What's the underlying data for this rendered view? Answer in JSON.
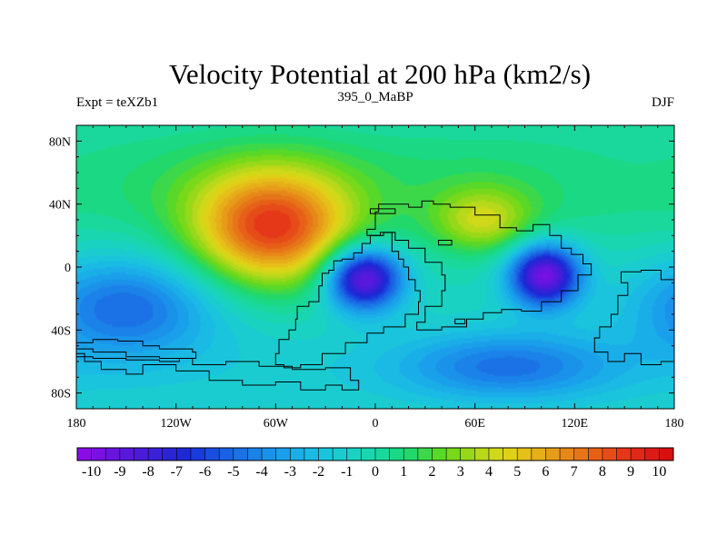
{
  "chart_data": {
    "type": "heatmap",
    "title": "Velocity Potential at 200 hPa (km2/s)",
    "left_string": "Expt = teXZb1",
    "center_string": "395_0_MaBP",
    "right_string": "DJF",
    "x_range": [
      -180,
      180
    ],
    "y_range": [
      -90,
      90
    ],
    "x_ticks": [
      {
        "value": -180,
        "label": "180"
      },
      {
        "value": -120,
        "label": "120W"
      },
      {
        "value": -60,
        "label": "60W"
      },
      {
        "value": 0,
        "label": "0"
      },
      {
        "value": 60,
        "label": "60E"
      },
      {
        "value": 120,
        "label": "120E"
      },
      {
        "value": 180,
        "label": "180"
      }
    ],
    "y_ticks": [
      {
        "value": 80,
        "label": "80N"
      },
      {
        "value": 40,
        "label": "40N"
      },
      {
        "value": 0,
        "label": "0"
      },
      {
        "value": -40,
        "label": "40S"
      },
      {
        "value": -80,
        "label": "80S"
      }
    ],
    "features": [
      {
        "name": "max-south-america",
        "lon": -62,
        "lat": 24,
        "value": 8.6
      },
      {
        "name": "max-central-asia",
        "lon": 65,
        "lat": 29,
        "value": 3.8
      },
      {
        "name": "min-africa",
        "lon": -7,
        "lat": -7,
        "value": -9.5
      },
      {
        "name": "min-indonesia",
        "lon": 102,
        "lat": -5,
        "value": -9.2
      },
      {
        "name": "min-south-pacific",
        "lon": -150,
        "lat": -25,
        "value": -4.3
      },
      {
        "name": "weak-low-arctic",
        "lon": 160,
        "lat": 60,
        "value": -0.5
      },
      {
        "name": "weak-low-southern",
        "lon": 80,
        "lat": -63,
        "value": -3.5
      }
    ],
    "colorbar": {
      "labels": [
        "-10",
        "-9",
        "-8",
        "-7",
        "-6",
        "-5",
        "-4",
        "-3",
        "-2",
        "-1",
        "0",
        "1",
        "2",
        "3",
        "4",
        "5",
        "6",
        "7",
        "8",
        "9",
        "10"
      ],
      "min": -10.5,
      "max": 10.5,
      "step": 0.5,
      "colors": [
        "#8a0ce6",
        "#7a10e3",
        "#6a14e0",
        "#5a18dd",
        "#4a1cda",
        "#3a20d7",
        "#2a24d4",
        "#1e28d6",
        "#1a3adc",
        "#1a4ee0",
        "#1a62e3",
        "#1a72e6",
        "#1a82e8",
        "#1a92ea",
        "#1aa0ea",
        "#1aaee8",
        "#1abae4",
        "#1ac4dc",
        "#1accd0",
        "#1ad2c2",
        "#1ad6b0",
        "#1ad89c",
        "#1ad884",
        "#22d86a",
        "#3cd84a",
        "#58d828",
        "#78d81a",
        "#98d81a",
        "#b8d81a",
        "#d0d81a",
        "#e0d018",
        "#e6c018",
        "#e6ae18",
        "#e69c18",
        "#e68818",
        "#e67418",
        "#e66018",
        "#e64c18",
        "#e43818",
        "#e02818",
        "#dc1a18",
        "#d81010"
      ]
    },
    "land_polygons": {
      "americas": [
        [
          -180,
          -55
        ],
        [
          -175,
          -60
        ],
        [
          -165,
          -65
        ],
        [
          -150,
          -68
        ],
        [
          -140,
          -62
        ],
        [
          -120,
          -66
        ],
        [
          -100,
          -72
        ],
        [
          -80,
          -75
        ],
        [
          -60,
          -73
        ],
        [
          -45,
          -78
        ],
        [
          -30,
          -75
        ],
        [
          -20,
          -78
        ],
        [
          -10,
          -72
        ],
        [
          -15,
          -64
        ],
        [
          -30,
          -65
        ],
        [
          -50,
          -63
        ],
        [
          -70,
          -60
        ],
        [
          -90,
          -62
        ],
        [
          -110,
          -58
        ],
        [
          -130,
          -57
        ],
        [
          -150,
          -54
        ],
        [
          -170,
          -52
        ]
      ],
      "australia": [
        [
          -180,
          -48
        ],
        [
          -170,
          -46
        ],
        [
          -155,
          -47
        ],
        [
          -140,
          -50
        ],
        [
          -130,
          -52
        ],
        [
          -118,
          -52
        ],
        [
          -110,
          -54
        ],
        [
          -108,
          -58
        ],
        [
          -118,
          -60
        ],
        [
          -130,
          -59
        ],
        [
          -150,
          -58
        ],
        [
          -170,
          -57
        ]
      ],
      "africa": [
        [
          -48,
          -33
        ],
        [
          -47,
          -25
        ],
        [
          -40,
          -22
        ],
        [
          -34,
          -12
        ],
        [
          -32,
          -4
        ],
        [
          -28,
          -2
        ],
        [
          -25,
          4
        ],
        [
          -20,
          5
        ],
        [
          -13,
          9
        ],
        [
          -8,
          15
        ],
        [
          -3,
          20
        ],
        [
          5,
          22
        ],
        [
          10,
          10
        ],
        [
          14,
          5
        ],
        [
          17,
          0
        ],
        [
          20,
          -8
        ],
        [
          24,
          -15
        ],
        [
          27,
          -22
        ],
        [
          26,
          -30
        ],
        [
          18,
          -38
        ],
        [
          5,
          -42
        ],
        [
          -5,
          -48
        ],
        [
          -18,
          -55
        ],
        [
          -32,
          -62
        ],
        [
          -45,
          -64
        ],
        [
          -55,
          -62
        ],
        [
          -60,
          -55
        ],
        [
          -58,
          -46
        ],
        [
          -52,
          -40
        ]
      ],
      "asia": [
        [
          -5,
          24
        ],
        [
          0,
          35
        ],
        [
          2,
          40
        ],
        [
          10,
          40
        ],
        [
          20,
          38
        ],
        [
          28,
          42
        ],
        [
          35,
          40
        ],
        [
          45,
          38
        ],
        [
          60,
          33
        ],
        [
          75,
          25
        ],
        [
          85,
          23
        ],
        [
          95,
          27
        ],
        [
          105,
          20
        ],
        [
          112,
          12
        ],
        [
          118,
          8
        ],
        [
          125,
          2
        ],
        [
          130,
          -5
        ],
        [
          122,
          -15
        ],
        [
          112,
          -22
        ],
        [
          100,
          -28
        ],
        [
          88,
          -27
        ],
        [
          76,
          -29
        ],
        [
          65,
          -33
        ],
        [
          55,
          -38
        ],
        [
          40,
          -40
        ],
        [
          25,
          -35
        ],
        [
          30,
          -25
        ],
        [
          40,
          -15
        ],
        [
          42,
          -5
        ],
        [
          40,
          3
        ],
        [
          30,
          12
        ],
        [
          20,
          17
        ],
        [
          12,
          22
        ],
        [
          3,
          20
        ]
      ],
      "east": [
        [
          148,
          -3
        ],
        [
          160,
          -2
        ],
        [
          172,
          -8
        ],
        [
          180,
          -12
        ],
        [
          180,
          -60
        ],
        [
          172,
          -62
        ],
        [
          160,
          -55
        ],
        [
          150,
          -60
        ],
        [
          140,
          -54
        ],
        [
          132,
          -45
        ],
        [
          135,
          -38
        ],
        [
          142,
          -30
        ],
        [
          146,
          -18
        ],
        [
          152,
          -10
        ]
      ],
      "islands": [
        [
          [
            -3,
            34
          ],
          [
            12,
            34
          ],
          [
            12,
            37
          ],
          [
            -3,
            37
          ]
        ],
        [
          [
            38,
            14
          ],
          [
            46,
            14
          ],
          [
            46,
            17
          ],
          [
            38,
            17
          ]
        ],
        [
          [
            48,
            -33
          ],
          [
            54,
            -33
          ],
          [
            54,
            -36
          ],
          [
            48,
            -36
          ]
        ]
      ]
    }
  }
}
